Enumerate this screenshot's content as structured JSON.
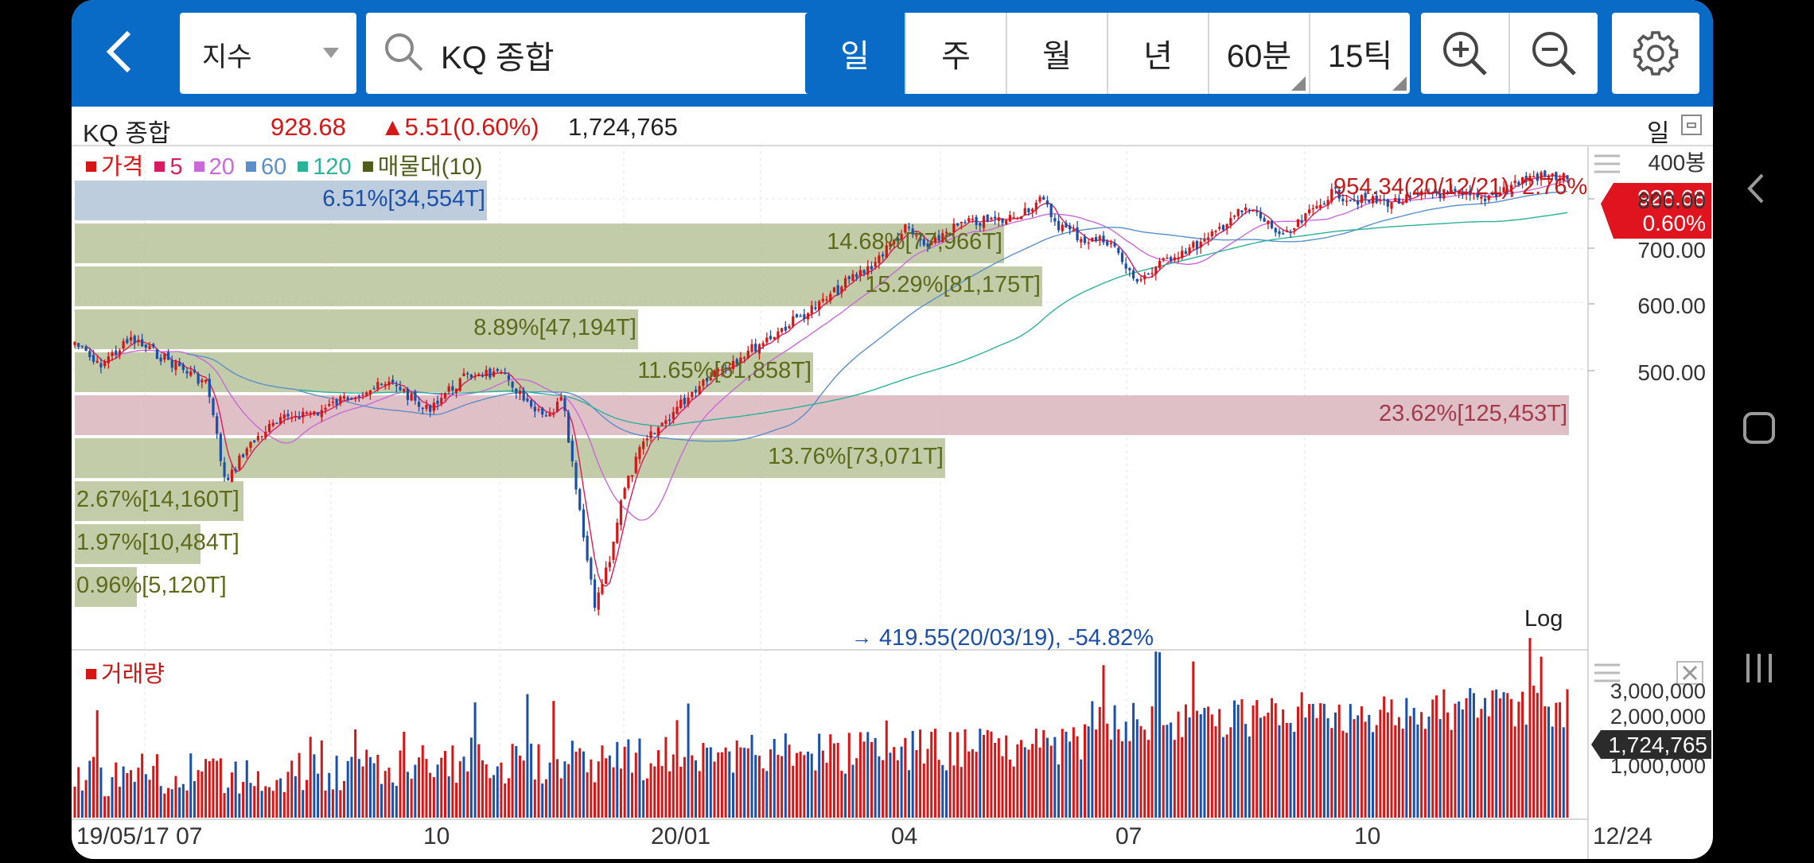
{
  "toolbar": {
    "index_select": "지수",
    "search_value": "KQ 종합",
    "periods": [
      "일",
      "주",
      "월",
      "년",
      "60분",
      "15틱"
    ],
    "active_period": "일"
  },
  "info": {
    "name": "KQ 종합",
    "price": "928.68",
    "change": "▲5.51(0.60%)",
    "volume": "1,724,765",
    "period_label": "일"
  },
  "legend": {
    "price": "가격",
    "ma5": "5",
    "ma20": "20",
    "ma60": "60",
    "ma120": "120",
    "volume_profile": "매물대(10)"
  },
  "chart_info": {
    "bars_count": "400봉",
    "current_price": "928.68",
    "current_pct": "0.60%",
    "high_note": "954.34(20/12/21), 2.76%",
    "high_arrow": "←",
    "low_note": "419.55(20/03/19), -54.82%",
    "low_arrow": "→",
    "scale": "Log",
    "volume_title": "거래량",
    "current_volume": "1,724,765"
  },
  "price_axis": [
    "800.00",
    "700.00",
    "600.00",
    "500.00"
  ],
  "volume_axis": [
    "3,000,000",
    "2,000,000",
    "1,000,000"
  ],
  "x_axis": [
    "19/05/17 07",
    "10",
    "20/01",
    "04",
    "07",
    "10",
    "12/24"
  ],
  "volume_profile": [
    {
      "label": "6.51%[34,554T]",
      "pct": 6.51
    },
    {
      "label": "14.68%[77,966T]",
      "pct": 14.68
    },
    {
      "label": "15.29%[81,175T]",
      "pct": 15.29
    },
    {
      "label": "8.89%[47,194T]",
      "pct": 8.89
    },
    {
      "label": "11.65%[61,858T]",
      "pct": 11.65
    },
    {
      "label": "23.62%[125,453T]",
      "pct": 23.62
    },
    {
      "label": "13.76%[73,071T]",
      "pct": 13.76
    },
    {
      "label": "2.67%[14,160T]",
      "pct": 2.67
    },
    {
      "label": "1.97%[10,484T]",
      "pct": 1.97
    },
    {
      "label": "0.96%[5,120T]",
      "pct": 0.96
    }
  ],
  "colors": {
    "toolbar": "#0a6bc6",
    "up": "#d51616",
    "down": "#1b4fa8",
    "ma5": "#d81b60",
    "ma20": "#c86ad8",
    "ma60": "#5b8fc9",
    "ma120": "#2bb39a",
    "profile": "#b7c39a",
    "profile_max": "#dbb5bd"
  }
}
